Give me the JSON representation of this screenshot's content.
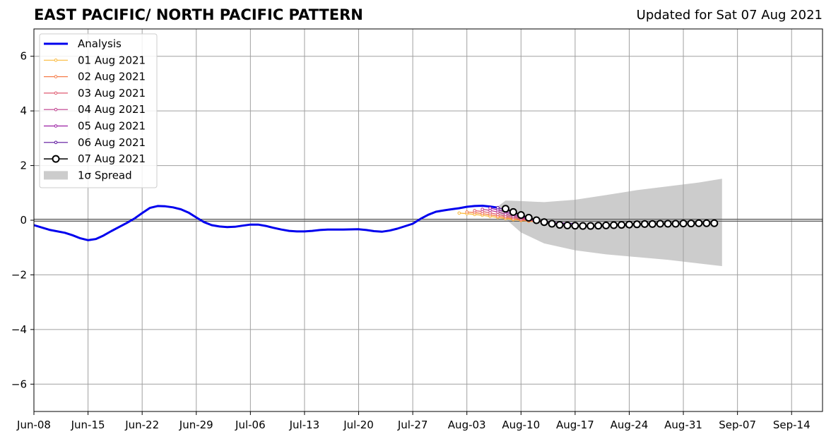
{
  "header": {
    "title": "EAST PACIFIC/ NORTH PACIFIC PATTERN",
    "updated": "Updated for Sat 07 Aug 2021"
  },
  "chart_data": {
    "type": "line",
    "title": "EAST PACIFIC/ NORTH PACIFIC PATTERN",
    "subtitle": "Updated for Sat 07 Aug 2021",
    "xlabel": "",
    "ylabel": "",
    "xlim": [
      "2021-06-08",
      "2021-09-18"
    ],
    "ylim": [
      -7,
      7
    ],
    "grid": true,
    "legend_position": "top-left",
    "x_ticks": [
      "Jun-08",
      "Jun-15",
      "Jun-22",
      "Jun-29",
      "Jul-06",
      "Jul-13",
      "Jul-20",
      "Jul-27",
      "Aug-03",
      "Aug-10",
      "Aug-17",
      "Aug-24",
      "Aug-31",
      "Sep-07",
      "Sep-14"
    ],
    "x_tick_dates": [
      "2021-06-08",
      "2021-06-15",
      "2021-06-22",
      "2021-06-29",
      "2021-07-06",
      "2021-07-13",
      "2021-07-20",
      "2021-07-27",
      "2021-08-03",
      "2021-08-10",
      "2021-08-17",
      "2021-08-24",
      "2021-08-31",
      "2021-09-07",
      "2021-09-14"
    ],
    "y_ticks": [
      6,
      4,
      2,
      0,
      -2,
      -4,
      -6
    ],
    "y_tick_labels": [
      "6",
      "4",
      "2",
      "0",
      "−2",
      "−4",
      "−6"
    ],
    "zero_line": 0,
    "analysis": {
      "name": "Analysis",
      "color": "#0000ee",
      "x": [
        "2021-06-08",
        "2021-06-10",
        "2021-06-12",
        "2021-06-13",
        "2021-06-14",
        "2021-06-15",
        "2021-06-16",
        "2021-06-17",
        "2021-06-18",
        "2021-06-19",
        "2021-06-20",
        "2021-06-21",
        "2021-06-22",
        "2021-06-23",
        "2021-06-24",
        "2021-06-25",
        "2021-06-26",
        "2021-06-27",
        "2021-06-28",
        "2021-06-29",
        "2021-06-30",
        "2021-07-01",
        "2021-07-02",
        "2021-07-03",
        "2021-07-04",
        "2021-07-05",
        "2021-07-06",
        "2021-07-07",
        "2021-07-08",
        "2021-07-09",
        "2021-07-10",
        "2021-07-11",
        "2021-07-12",
        "2021-07-13",
        "2021-07-14",
        "2021-07-15",
        "2021-07-16",
        "2021-07-18",
        "2021-07-20",
        "2021-07-21",
        "2021-07-22",
        "2021-07-23",
        "2021-07-24",
        "2021-07-25",
        "2021-07-26",
        "2021-07-27",
        "2021-07-28",
        "2021-07-29",
        "2021-07-30",
        "2021-07-31",
        "2021-08-01",
        "2021-08-02",
        "2021-08-03",
        "2021-08-04",
        "2021-08-05",
        "2021-08-06",
        "2021-08-07"
      ],
      "y": [
        -0.18,
        -0.35,
        -0.46,
        -0.55,
        -0.66,
        -0.73,
        -0.69,
        -0.56,
        -0.4,
        -0.25,
        -0.1,
        0.06,
        0.26,
        0.45,
        0.52,
        0.51,
        0.47,
        0.4,
        0.28,
        0.1,
        -0.07,
        -0.18,
        -0.23,
        -0.25,
        -0.24,
        -0.2,
        -0.16,
        -0.16,
        -0.21,
        -0.28,
        -0.34,
        -0.39,
        -0.41,
        -0.41,
        -0.39,
        -0.36,
        -0.34,
        -0.34,
        -0.33,
        -0.36,
        -0.4,
        -0.42,
        -0.38,
        -0.31,
        -0.22,
        -0.13,
        0.05,
        0.2,
        0.31,
        0.36,
        0.4,
        0.44,
        0.49,
        0.52,
        0.53,
        0.5,
        0.46
      ]
    },
    "forecasts": [
      {
        "name": "01 Aug 2021",
        "color": "#f9b93a",
        "start": "2021-08-02",
        "y": [
          0.26,
          0.24,
          0.21,
          0.18,
          0.14,
          0.1,
          0.06,
          0.02,
          -0.01,
          -0.04,
          -0.06
        ]
      },
      {
        "name": "02 Aug 2021",
        "color": "#f57d4a",
        "start": "2021-08-03",
        "y": [
          0.3,
          0.28,
          0.24,
          0.2,
          0.15,
          0.1,
          0.05,
          0.01,
          -0.03,
          -0.05,
          -0.07
        ]
      },
      {
        "name": "03 Aug 2021",
        "color": "#df5a70",
        "start": "2021-08-04",
        "y": [
          0.35,
          0.32,
          0.27,
          0.21,
          0.15,
          0.1,
          0.04,
          0.0,
          -0.04,
          -0.07,
          -0.08
        ]
      },
      {
        "name": "04 Aug 2021",
        "color": "#bf3b8c",
        "start": "2021-08-05",
        "y": [
          0.4,
          0.36,
          0.3,
          0.22,
          0.15,
          0.08,
          0.02,
          -0.03,
          -0.06,
          -0.08,
          -0.1
        ]
      },
      {
        "name": "05 Aug 2021",
        "color": "#9a1fa3",
        "start": "2021-08-06",
        "y": [
          0.44,
          0.38,
          0.3,
          0.21,
          0.12,
          0.05,
          -0.01,
          -0.05,
          -0.08,
          -0.1,
          -0.11
        ]
      },
      {
        "name": "06 Aug 2021",
        "color": "#5a109c",
        "start": "2021-08-07",
        "y": [
          0.46,
          0.38,
          0.28,
          0.17,
          0.07,
          -0.01,
          -0.06,
          -0.09,
          -0.11,
          -0.12,
          -0.12
        ]
      },
      {
        "name": "07 Aug 2021",
        "color": "#000000",
        "start": "2021-08-08",
        "y": [
          0.42,
          0.3,
          0.19,
          0.09,
          0.0,
          -0.07,
          -0.13,
          -0.17,
          -0.19,
          -0.2,
          -0.21,
          -0.21,
          -0.2,
          -0.19,
          -0.18,
          -0.17,
          -0.16,
          -0.15,
          -0.14,
          -0.14,
          -0.13,
          -0.13,
          -0.13,
          -0.12,
          -0.12,
          -0.11,
          -0.11,
          -0.11
        ]
      }
    ],
    "spread": {
      "name": "1σ Spread",
      "color": "#cccccc",
      "x": [
        "2021-08-07",
        "2021-08-08",
        "2021-08-10",
        "2021-08-13",
        "2021-08-17",
        "2021-08-21",
        "2021-08-25",
        "2021-08-29",
        "2021-09-02",
        "2021-09-05"
      ],
      "upper": [
        0.5,
        0.72,
        0.7,
        0.66,
        0.75,
        0.92,
        1.1,
        1.24,
        1.38,
        1.52
      ],
      "lower": [
        0.3,
        0.05,
        -0.45,
        -0.85,
        -1.1,
        -1.25,
        -1.35,
        -1.45,
        -1.58,
        -1.68
      ]
    },
    "legend": [
      "Analysis",
      "01 Aug 2021",
      "02 Aug 2021",
      "03 Aug 2021",
      "04 Aug 2021",
      "05 Aug 2021",
      "06 Aug 2021",
      "07 Aug 2021",
      "1σ Spread"
    ]
  }
}
